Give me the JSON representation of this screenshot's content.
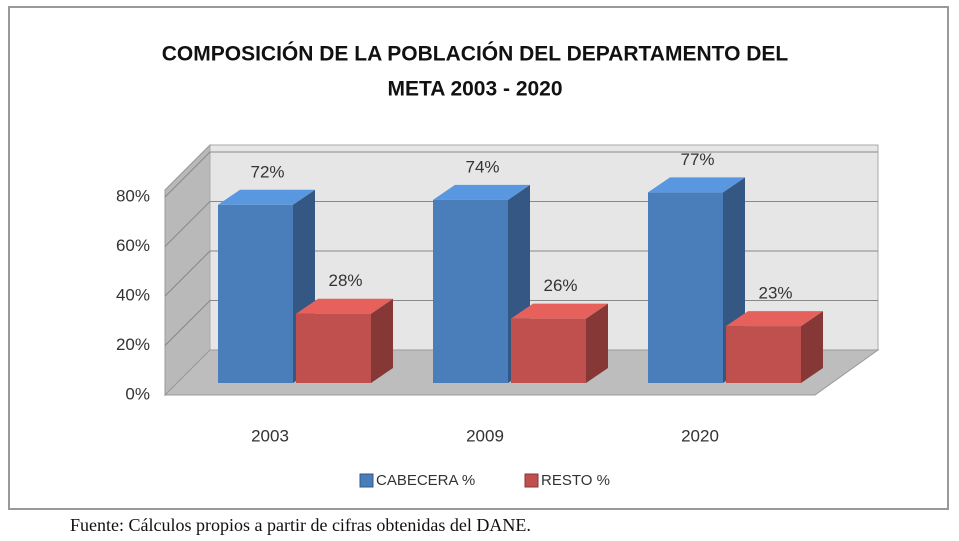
{
  "chart_data": {
    "type": "bar3d",
    "title": [
      "COMPOSICIÓN DE LA POBLACIÓN DEL DEPARTAMENTO DEL",
      "META 2003 - 2020"
    ],
    "categories": [
      "2003",
      "2009",
      "2020"
    ],
    "series": [
      {
        "name": "CABECERA %",
        "color": "#4a7ebb",
        "values": [
          72,
          74,
          77
        ],
        "value_labels": [
          "72%",
          "74%",
          "77%"
        ]
      },
      {
        "name": "RESTO %",
        "color": "#c0504d",
        "values": [
          28,
          26,
          23
        ],
        "value_labels": [
          "28%",
          "26%",
          "23%"
        ]
      }
    ],
    "ylim": [
      0,
      80
    ],
    "yticks": [
      {
        "value": 0,
        "label": "0%"
      },
      {
        "value": 20,
        "label": "20%"
      },
      {
        "value": 40,
        "label": "40%"
      },
      {
        "value": 60,
        "label": "60%"
      },
      {
        "value": 80,
        "label": "80%"
      }
    ],
    "grid": true,
    "legend": "bottom",
    "source": "Fuente: Cálculos propios a partir de cifras obtenidas del DANE."
  }
}
